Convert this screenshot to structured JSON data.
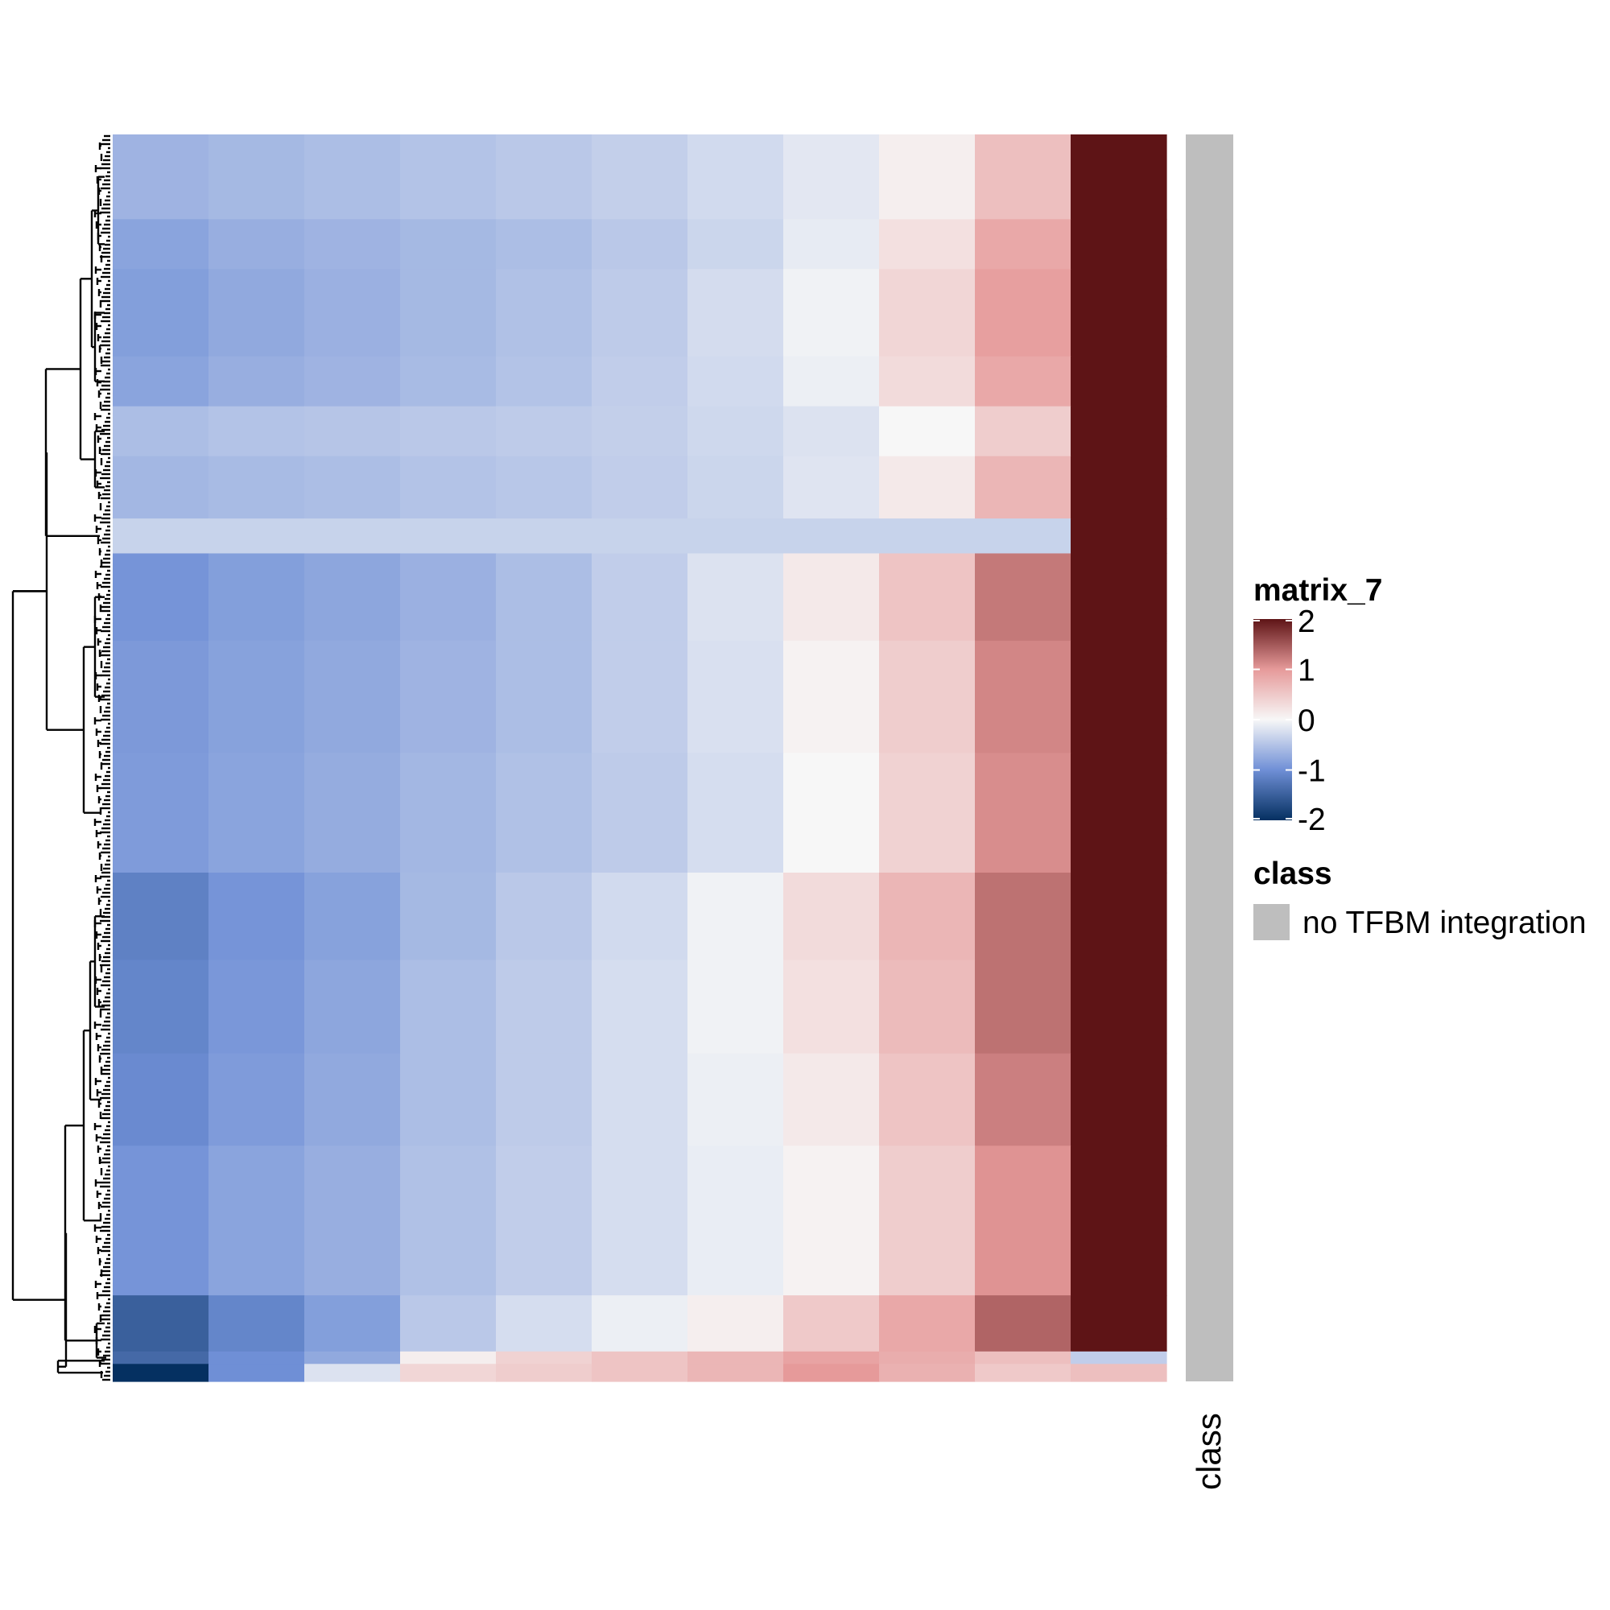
{
  "chart_data": {
    "type": "heatmap",
    "color_scale": {
      "title": "matrix_7",
      "ticks": [
        2,
        1,
        0,
        -1,
        -2
      ],
      "tick_labels": [
        "2",
        "1",
        "0",
        "-1",
        "-2"
      ],
      "stops": [
        {
          "value": -2,
          "color": "#053061"
        },
        {
          "value": -1,
          "color": "#6f8fd6"
        },
        {
          "value": 0,
          "color": "#f7f7f7"
        },
        {
          "value": 1,
          "color": "#e69a9a"
        },
        {
          "value": 2,
          "color": "#5e1416"
        }
      ]
    },
    "n_columns": 11,
    "row_blocks": [
      {
        "weight": 0.068,
        "values": [
          -0.65,
          -0.6,
          -0.55,
          -0.5,
          -0.45,
          -0.38,
          -0.28,
          -0.15,
          0.1,
          0.6,
          2.0
        ]
      },
      {
        "weight": 0.04,
        "values": [
          -0.8,
          -0.7,
          -0.65,
          -0.6,
          -0.55,
          -0.45,
          -0.32,
          -0.12,
          0.25,
          0.85,
          2.0
        ]
      },
      {
        "weight": 0.07,
        "values": [
          -0.85,
          -0.75,
          -0.68,
          -0.6,
          -0.52,
          -0.42,
          -0.26,
          -0.05,
          0.35,
          0.95,
          2.0
        ]
      },
      {
        "weight": 0.04,
        "values": [
          -0.8,
          -0.7,
          -0.65,
          -0.58,
          -0.5,
          -0.4,
          -0.28,
          -0.08,
          0.3,
          0.85,
          2.0
        ]
      },
      {
        "weight": 0.04,
        "values": [
          -0.55,
          -0.5,
          -0.48,
          -0.45,
          -0.42,
          -0.38,
          -0.3,
          -0.2,
          0.0,
          0.45,
          2.0
        ]
      },
      {
        "weight": 0.05,
        "values": [
          -0.62,
          -0.58,
          -0.55,
          -0.5,
          -0.46,
          -0.4,
          -0.32,
          -0.18,
          0.15,
          0.7,
          2.0
        ]
      },
      {
        "weight": 0.028,
        "values": [
          -0.35,
          -0.35,
          -0.35,
          -0.35,
          -0.35,
          -0.35,
          -0.35,
          -0.35,
          -0.35,
          -0.35,
          2.0
        ]
      },
      {
        "weight": 0.07,
        "values": [
          -0.95,
          -0.85,
          -0.78,
          -0.68,
          -0.55,
          -0.4,
          -0.2,
          0.15,
          0.55,
          1.25,
          2.0
        ]
      },
      {
        "weight": 0.09,
        "values": [
          -0.9,
          -0.82,
          -0.75,
          -0.65,
          -0.55,
          -0.4,
          -0.22,
          0.05,
          0.45,
          1.15,
          2.0
        ]
      },
      {
        "weight": 0.096,
        "values": [
          -0.88,
          -0.8,
          -0.72,
          -0.62,
          -0.52,
          -0.42,
          -0.25,
          0.0,
          0.4,
          1.1,
          2.0
        ]
      },
      {
        "weight": 0.07,
        "values": [
          -1.15,
          -0.95,
          -0.82,
          -0.6,
          -0.45,
          -0.28,
          -0.05,
          0.3,
          0.7,
          1.3,
          2.0
        ]
      },
      {
        "weight": 0.075,
        "values": [
          -1.1,
          -0.92,
          -0.78,
          -0.55,
          -0.42,
          -0.25,
          -0.05,
          0.25,
          0.65,
          1.3,
          2.0
        ]
      },
      {
        "weight": 0.074,
        "values": [
          -1.05,
          -0.88,
          -0.75,
          -0.55,
          -0.42,
          -0.25,
          -0.08,
          0.15,
          0.55,
          1.2,
          2.0
        ]
      },
      {
        "weight": 0.12,
        "values": [
          -0.95,
          -0.8,
          -0.7,
          -0.52,
          -0.4,
          -0.25,
          -0.1,
          0.05,
          0.45,
          1.05,
          2.0
        ]
      },
      {
        "weight": 0.045,
        "values": [
          -1.5,
          -1.1,
          -0.85,
          -0.45,
          -0.25,
          -0.08,
          0.1,
          0.5,
          0.85,
          1.4,
          2.0
        ]
      },
      {
        "weight": 0.01,
        "values": [
          -1.4,
          -1.0,
          -0.75,
          0.1,
          0.4,
          0.55,
          0.7,
          0.9,
          0.8,
          0.6,
          -0.4
        ]
      },
      {
        "weight": 0.014,
        "values": [
          -2.0,
          -1.0,
          -0.2,
          0.35,
          0.45,
          0.55,
          0.7,
          1.0,
          0.75,
          0.5,
          0.6
        ]
      }
    ],
    "annotation": {
      "name": "class",
      "axis_label": "class",
      "legend_title": "class",
      "levels": [
        {
          "label": "no TFBM integration",
          "color": "#bebebe"
        }
      ]
    },
    "dendrogram": {
      "side": "left",
      "shown": true
    },
    "row_labels_shown": false,
    "column_labels_shown": false
  }
}
